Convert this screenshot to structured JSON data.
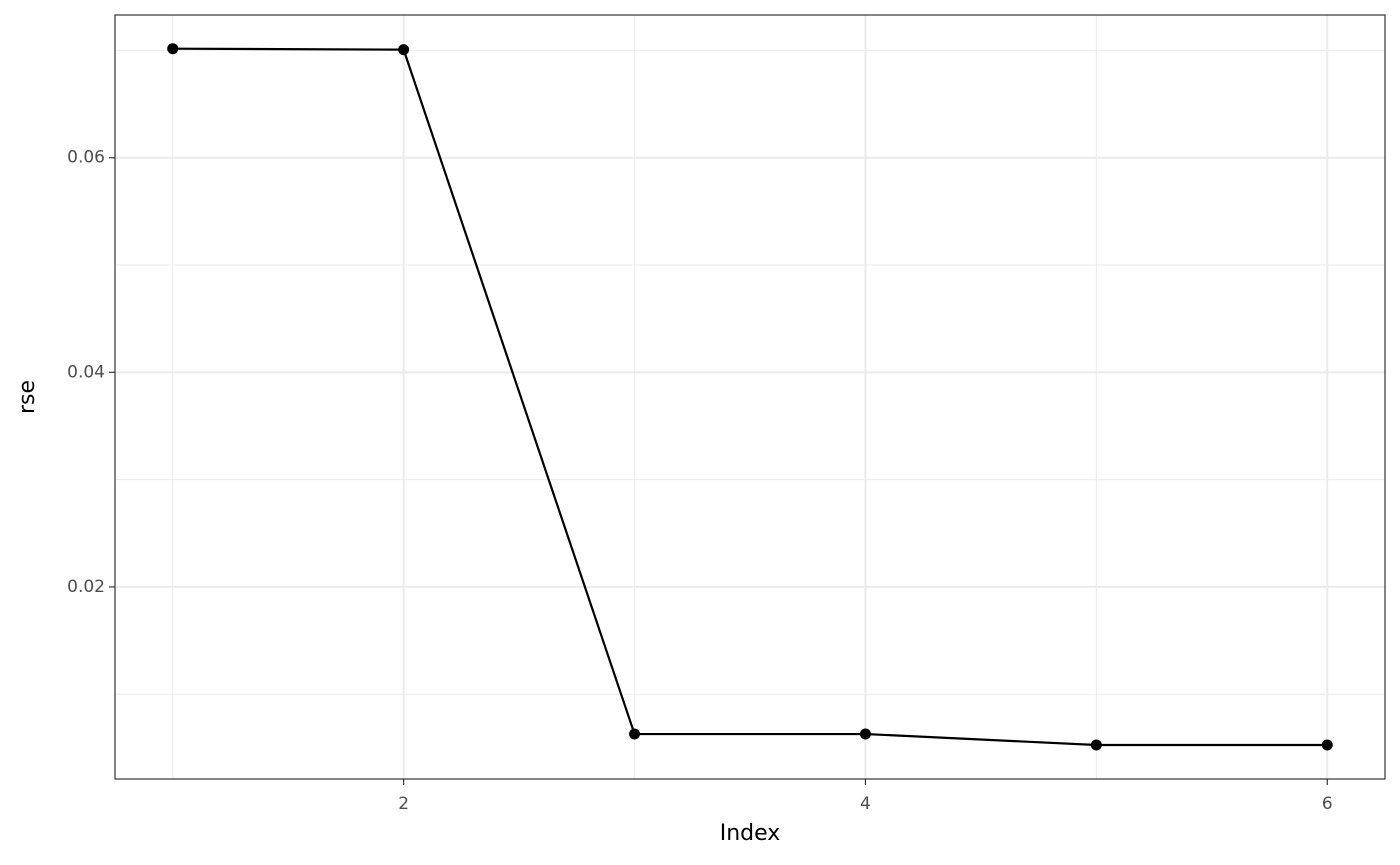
{
  "chart_data": {
    "type": "line",
    "x_label": "Index",
    "y_label": "rse",
    "x": [
      1,
      2,
      3,
      4,
      5,
      6
    ],
    "series": [
      {
        "color": "#000000",
        "values": [
          0.07016,
          0.07007,
          0.00629,
          0.00629,
          0.00527,
          0.00527
        ]
      }
    ],
    "xlim": [
      0.75,
      6.25
    ],
    "xticks": [
      2,
      4,
      6
    ],
    "xminorticks": [
      1,
      3,
      5
    ],
    "ylim": [
      0.0021,
      0.0733
    ],
    "yticks": [
      0.02,
      0.04,
      0.06
    ],
    "yminorticks": [
      0.01,
      0.03,
      0.05,
      0.07
    ],
    "grid": true
  }
}
